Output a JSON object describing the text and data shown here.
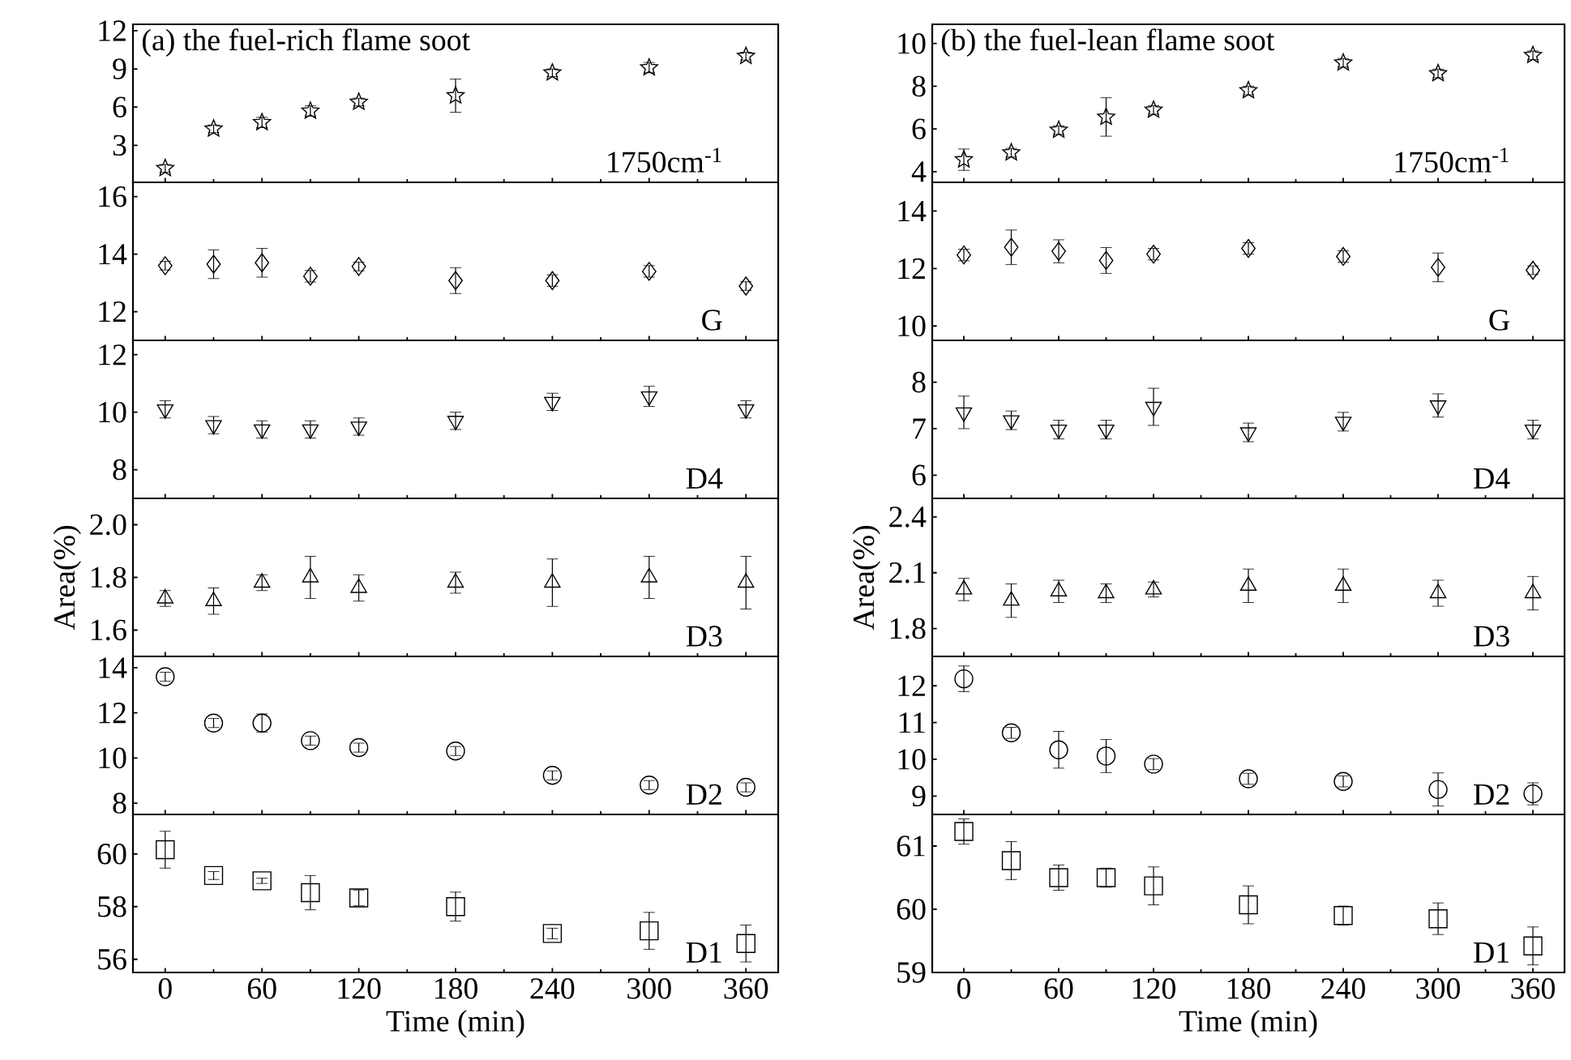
{
  "chart_data": [
    {
      "type": "scatter",
      "title": "(a) the fuel-rich flame soot",
      "annotations": [
        "1750cm$^{-1}$"
      ],
      "marker": "star",
      "color": "#000000",
      "tick_labels": "y",
      "x": [
        0,
        30,
        60,
        90,
        120,
        180,
        240,
        300,
        360
      ],
      "values": [
        1.2,
        4.3,
        4.8,
        5.7,
        6.4,
        6.9,
        8.7,
        9.1,
        10.0
      ],
      "errors": [
        0.3,
        0.3,
        0.4,
        0.4,
        0.3,
        1.3,
        0.3,
        0.4,
        0.3
      ],
      "xlim": [
        -20,
        380
      ],
      "xticks": [
        0,
        {
          "value": 30,
          "label": null
        },
        60,
        {
          "value": 90,
          "label": null
        },
        120,
        {
          "value": 150,
          "label": null
        },
        180,
        {
          "value": 210,
          "label": null
        },
        240,
        {
          "value": 270,
          "label": null
        },
        300,
        {
          "value": 330,
          "label": null
        },
        360
      ],
      "ylim": [
        0.1,
        12.5
      ],
      "yticks": [
        3,
        6,
        9,
        12
      ]
    },
    {
      "type": "scatter",
      "annotations": [
        "G"
      ],
      "marker": "diamond",
      "color": "#000000",
      "tick_labels": "y",
      "x": [
        0,
        30,
        60,
        90,
        120,
        180,
        240,
        300,
        360
      ],
      "values": [
        13.6,
        13.65,
        13.7,
        13.23,
        13.57,
        13.08,
        13.08,
        13.4,
        12.89
      ],
      "errors": [
        0.15,
        0.5,
        0.5,
        0.2,
        0.15,
        0.45,
        0.2,
        0.2,
        0.15
      ],
      "xlim": [
        -20,
        380
      ],
      "xticks": [
        0,
        {
          "value": 30,
          "label": null
        },
        60,
        {
          "value": 90,
          "label": null
        },
        120,
        {
          "value": 150,
          "label": null
        },
        180,
        {
          "value": 210,
          "label": null
        },
        240,
        {
          "value": 270,
          "label": null
        },
        300,
        {
          "value": 330,
          "label": null
        },
        360
      ],
      "ylim": [
        11,
        16.5
      ],
      "yticks": [
        12,
        14,
        16
      ]
    },
    {
      "type": "scatter",
      "annotations": [
        "D4"
      ],
      "marker": "triangle-down",
      "color": "#000000",
      "tick_labels": "y",
      "x": [
        0,
        30,
        60,
        90,
        120,
        180,
        240,
        300,
        360
      ],
      "values": [
        10.1,
        9.55,
        9.4,
        9.4,
        9.5,
        9.7,
        10.36,
        10.55,
        10.1
      ],
      "errors": [
        0.3,
        0.3,
        0.3,
        0.3,
        0.3,
        0.3,
        0.3,
        0.35,
        0.3
      ],
      "xlim": [
        -20,
        380
      ],
      "xticks": [
        0,
        {
          "value": 30,
          "label": null
        },
        60,
        {
          "value": 90,
          "label": null
        },
        120,
        {
          "value": 150,
          "label": null
        },
        180,
        {
          "value": 210,
          "label": null
        },
        240,
        {
          "value": 270,
          "label": null
        },
        300,
        {
          "value": 330,
          "label": null
        },
        360
      ],
      "ylim": [
        7,
        12.5
      ],
      "yticks": [
        8,
        10,
        12
      ]
    },
    {
      "type": "scatter",
      "ylabel": "Area(%)",
      "annotations": [
        "D3"
      ],
      "marker": "triangle",
      "color": "#000000",
      "tick_labels": "y",
      "x": [
        0,
        30,
        60,
        90,
        120,
        180,
        240,
        300,
        360
      ],
      "values": [
        1.72,
        1.71,
        1.78,
        1.8,
        1.76,
        1.78,
        1.78,
        1.8,
        1.78
      ],
      "errors": [
        0.03,
        0.05,
        0.03,
        0.08,
        0.05,
        0.04,
        0.09,
        0.08,
        0.1
      ],
      "xlim": [
        -20,
        380
      ],
      "xticks": [
        0,
        {
          "value": 30,
          "label": null
        },
        60,
        {
          "value": 90,
          "label": null
        },
        120,
        {
          "value": 150,
          "label": null
        },
        180,
        {
          "value": 210,
          "label": null
        },
        240,
        {
          "value": 270,
          "label": null
        },
        300,
        {
          "value": 330,
          "label": null
        },
        360
      ],
      "ylim": [
        1.5,
        2.1
      ],
      "yticks": [
        1.6,
        1.8,
        {
          "value": 2,
          "label": "2.0"
        }
      ]
    },
    {
      "type": "scatter",
      "annotations": [
        "D2"
      ],
      "marker": "circle",
      "color": "#000000",
      "tick_labels": "y",
      "x": [
        0,
        30,
        60,
        90,
        120,
        180,
        240,
        300,
        360
      ],
      "values": [
        13.6,
        11.55,
        11.55,
        10.77,
        10.46,
        10.31,
        9.23,
        8.8,
        8.7
      ],
      "errors": [
        0.2,
        0.2,
        0.4,
        0.2,
        0.2,
        0.2,
        0.2,
        0.2,
        0.2
      ],
      "xlim": [
        -20,
        380
      ],
      "xticks": [
        0,
        {
          "value": 30,
          "label": null
        },
        60,
        {
          "value": 90,
          "label": null
        },
        120,
        {
          "value": 150,
          "label": null
        },
        180,
        {
          "value": 210,
          "label": null
        },
        240,
        {
          "value": 270,
          "label": null
        },
        300,
        {
          "value": 330,
          "label": null
        },
        360
      ],
      "ylim": [
        7.5,
        14.5
      ],
      "yticks": [
        8,
        10,
        12,
        14
      ]
    },
    {
      "type": "scatter",
      "xlabel": "Time (min)",
      "annotations": [
        "D1"
      ],
      "marker": "square",
      "color": "#000000",
      "x": [
        0,
        30,
        60,
        90,
        120,
        180,
        240,
        300,
        360
      ],
      "values": [
        60.16,
        59.18,
        58.98,
        58.53,
        58.33,
        58.0,
        56.98,
        57.08,
        56.6
      ],
      "errors": [
        0.7,
        0.15,
        0.1,
        0.65,
        0.3,
        0.55,
        0.2,
        0.7,
        0.7
      ],
      "xlim": [
        -20,
        380
      ],
      "xticks": [
        0,
        {
          "value": 30,
          "label": null
        },
        60,
        {
          "value": 90,
          "label": null
        },
        120,
        {
          "value": 150,
          "label": null
        },
        180,
        {
          "value": 210,
          "label": null
        },
        240,
        {
          "value": 270,
          "label": null
        },
        300,
        {
          "value": 330,
          "label": null
        },
        360
      ],
      "ylim": [
        55.5,
        61.5
      ],
      "yticks": [
        56,
        58,
        60
      ]
    },
    {
      "type": "scatter",
      "title": "(b) the fuel-lean flame soot",
      "annotations": [
        "1750cm$^{-1}$"
      ],
      "marker": "star",
      "color": "#000000",
      "tick_labels": "y",
      "x": [
        0,
        30,
        60,
        90,
        120,
        180,
        240,
        300,
        360
      ],
      "values": [
        4.56,
        4.89,
        5.95,
        6.56,
        6.89,
        7.8,
        9.1,
        8.6,
        9.45
      ],
      "errors": [
        0.5,
        0.2,
        0.2,
        0.9,
        0.2,
        0.2,
        0.2,
        0.2,
        0.2
      ],
      "xlim": [
        -20,
        380
      ],
      "xticks": [
        0,
        {
          "value": 30,
          "label": null
        },
        60,
        {
          "value": 90,
          "label": null
        },
        120,
        {
          "value": 150,
          "label": null
        },
        180,
        {
          "value": 210,
          "label": null
        },
        240,
        {
          "value": 270,
          "label": null
        },
        300,
        {
          "value": 330,
          "label": null
        },
        360
      ],
      "ylim": [
        3.5,
        10.9
      ],
      "yticks": [
        4,
        6,
        8,
        10
      ]
    },
    {
      "type": "scatter",
      "annotations": [
        "G"
      ],
      "marker": "diamond",
      "color": "#000000",
      "tick_labels": "y",
      "x": [
        0,
        30,
        60,
        90,
        120,
        180,
        240,
        300,
        360
      ],
      "values": [
        12.47,
        12.74,
        12.6,
        12.28,
        12.5,
        12.7,
        12.42,
        12.04,
        11.94
      ],
      "errors": [
        0.2,
        0.6,
        0.4,
        0.45,
        0.2,
        0.2,
        0.2,
        0.5,
        0.15
      ],
      "xlim": [
        -20,
        380
      ],
      "xticks": [
        0,
        {
          "value": 30,
          "label": null
        },
        60,
        {
          "value": 90,
          "label": null
        },
        120,
        {
          "value": 150,
          "label": null
        },
        180,
        {
          "value": 210,
          "label": null
        },
        240,
        {
          "value": 270,
          "label": null
        },
        300,
        {
          "value": 330,
          "label": null
        },
        360
      ],
      "ylim": [
        9.5,
        15
      ],
      "yticks": [
        10,
        12,
        14
      ]
    },
    {
      "type": "scatter",
      "annotations": [
        "D4"
      ],
      "marker": "triangle-down",
      "color": "#000000",
      "tick_labels": "y",
      "x": [
        0,
        30,
        60,
        90,
        120,
        180,
        240,
        300,
        360
      ],
      "values": [
        7.35,
        7.18,
        6.98,
        6.98,
        7.47,
        6.92,
        7.15,
        7.5,
        6.98
      ],
      "errors": [
        0.35,
        0.2,
        0.2,
        0.2,
        0.4,
        0.2,
        0.2,
        0.25,
        0.2
      ],
      "xlim": [
        -20,
        380
      ],
      "xticks": [
        0,
        {
          "value": 30,
          "label": null
        },
        60,
        {
          "value": 90,
          "label": null
        },
        120,
        {
          "value": 150,
          "label": null
        },
        180,
        {
          "value": 210,
          "label": null
        },
        240,
        {
          "value": 270,
          "label": null
        },
        300,
        {
          "value": 330,
          "label": null
        },
        360
      ],
      "ylim": [
        5.5,
        8.9
      ],
      "yticks": [
        6,
        7,
        8
      ]
    },
    {
      "type": "scatter",
      "ylabel": "Area(%)",
      "annotations": [
        "D3"
      ],
      "marker": "triangle",
      "color": "#000000",
      "tick_labels": "y",
      "x": [
        0,
        30,
        60,
        90,
        120,
        180,
        240,
        300,
        360
      ],
      "values": [
        2.01,
        1.95,
        2.0,
        1.99,
        2.01,
        2.03,
        2.03,
        1.99,
        1.99
      ],
      "errors": [
        0.06,
        0.09,
        0.06,
        0.05,
        0.04,
        0.09,
        0.09,
        0.07,
        0.09
      ],
      "xlim": [
        -20,
        380
      ],
      "xticks": [
        0,
        {
          "value": 30,
          "label": null
        },
        60,
        {
          "value": 90,
          "label": null
        },
        120,
        {
          "value": 150,
          "label": null
        },
        180,
        {
          "value": 210,
          "label": null
        },
        240,
        {
          "value": 270,
          "label": null
        },
        300,
        {
          "value": 330,
          "label": null
        },
        360
      ],
      "ylim": [
        1.65,
        2.5
      ],
      "yticks": [
        1.8,
        2.1,
        2.4
      ]
    },
    {
      "type": "scatter",
      "annotations": [
        "D2"
      ],
      "marker": "circle",
      "color": "#000000",
      "tick_labels": "y",
      "x": [
        0,
        30,
        60,
        90,
        120,
        180,
        240,
        300,
        360
      ],
      "values": [
        12.19,
        10.72,
        10.26,
        10.09,
        9.87,
        9.47,
        9.4,
        9.18,
        9.06
      ],
      "errors": [
        0.35,
        0.15,
        0.5,
        0.45,
        0.15,
        0.15,
        0.15,
        0.45,
        0.3
      ],
      "xlim": [
        -20,
        380
      ],
      "xticks": [
        0,
        {
          "value": 30,
          "label": null
        },
        60,
        {
          "value": 90,
          "label": null
        },
        120,
        {
          "value": 150,
          "label": null
        },
        180,
        {
          "value": 210,
          "label": null
        },
        240,
        {
          "value": 270,
          "label": null
        },
        300,
        {
          "value": 330,
          "label": null
        },
        360
      ],
      "ylim": [
        8.5,
        12.8
      ],
      "yticks": [
        9,
        10,
        11,
        12
      ]
    },
    {
      "type": "scatter",
      "xlabel": "Time (min)",
      "annotations": [
        "D1"
      ],
      "marker": "square",
      "color": "#000000",
      "x": [
        0,
        30,
        60,
        90,
        120,
        180,
        240,
        300,
        360
      ],
      "values": [
        61.23,
        60.77,
        60.5,
        60.5,
        60.37,
        60.07,
        59.9,
        59.85,
        59.42
      ],
      "errors": [
        0.2,
        0.3,
        0.2,
        0.15,
        0.3,
        0.3,
        0.15,
        0.25,
        0.3
      ],
      "xlim": [
        -20,
        380
      ],
      "xticks": [
        0,
        {
          "value": 30,
          "label": null
        },
        60,
        {
          "value": 90,
          "label": null
        },
        120,
        {
          "value": 150,
          "label": null
        },
        180,
        {
          "value": 210,
          "label": null
        },
        240,
        {
          "value": 270,
          "label": null
        },
        300,
        {
          "value": 330,
          "label": null
        },
        360
      ],
      "ylim": [
        59,
        61.5
      ],
      "yticks": [
        59,
        60,
        61
      ]
    }
  ]
}
